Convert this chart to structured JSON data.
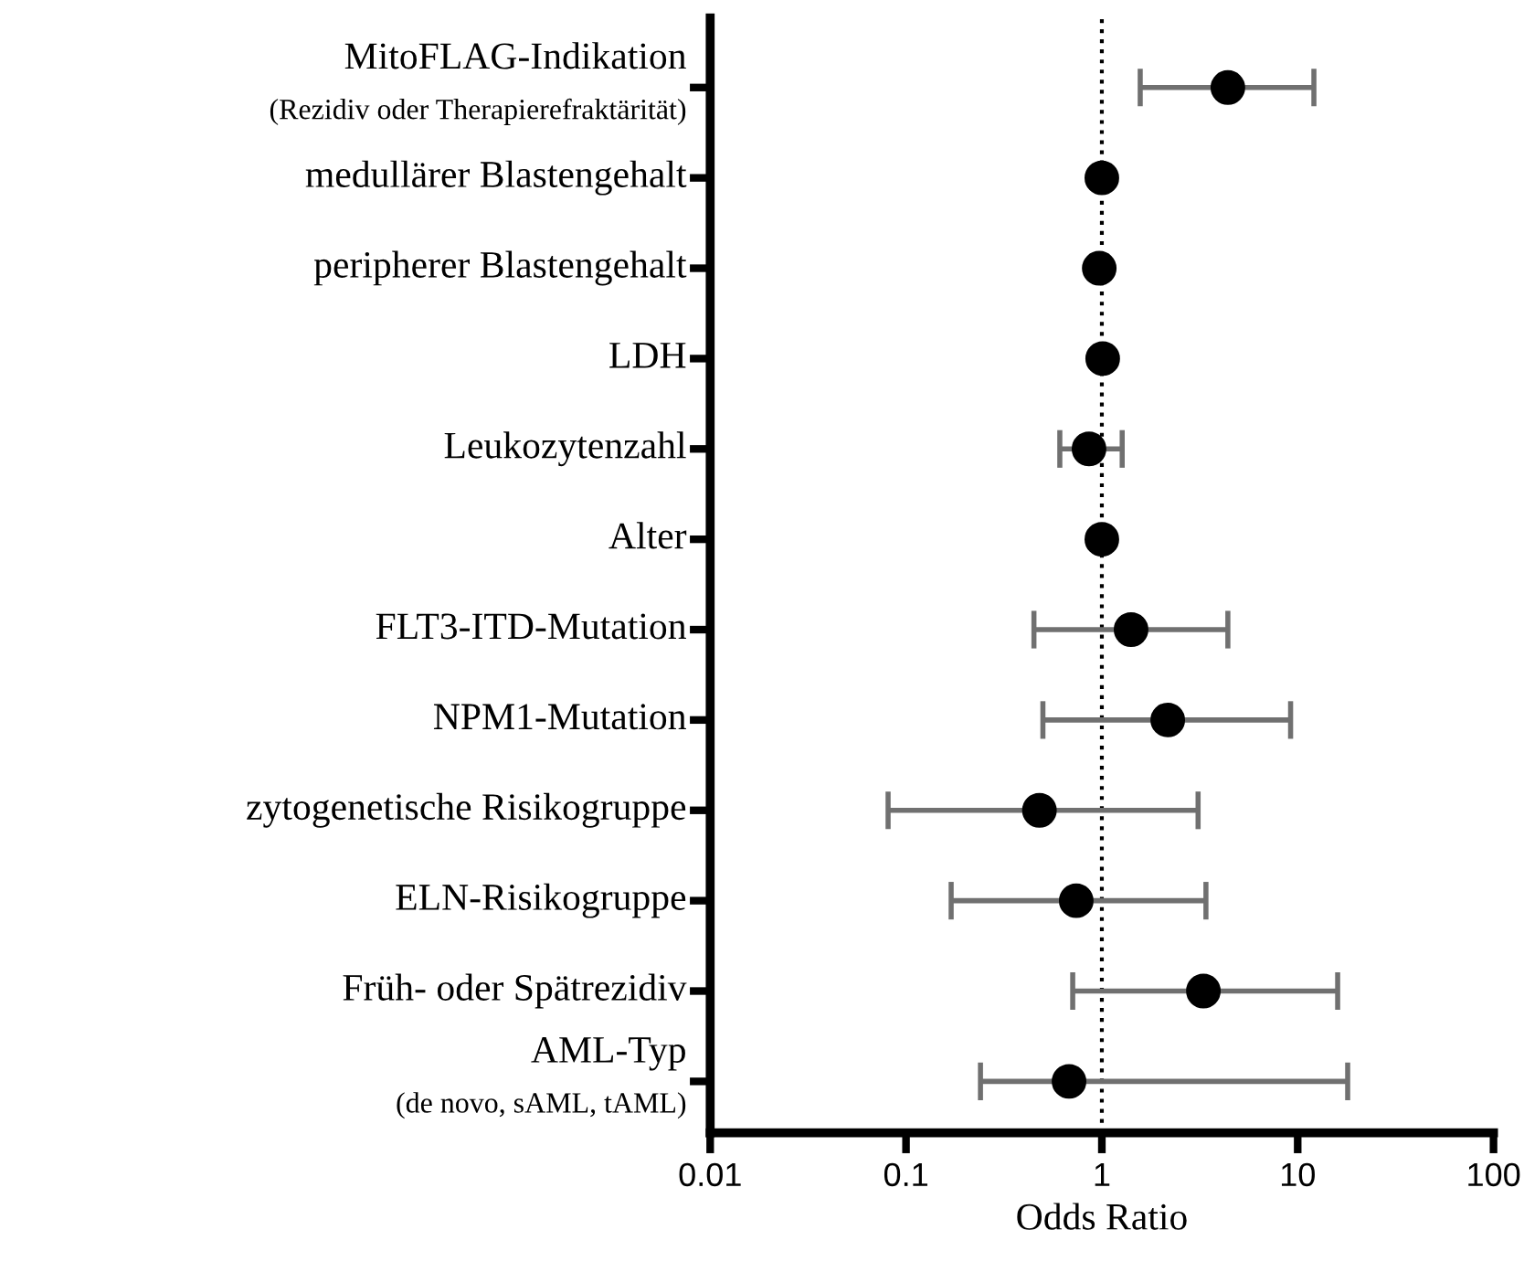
{
  "chart_data": {
    "type": "scatter",
    "orientation": "horizontal",
    "log": "x",
    "xlabel": "Odds Ratio",
    "categories": [
      "MitoFLAG-Indikation\n(Rezidiv oder Therapierefraktärität)",
      "medullärer Blastengehalt",
      "peripherer Blastengehalt",
      "LDH",
      "Leukozytenzahl",
      "Alter",
      "FLT3-ITD-Mutation",
      "NPM1-Mutation",
      "zytogenetische Risikogruppe",
      "ELN-Risikogruppe",
      "Früh- oder Spätrezidiv",
      "AML-Typ\n(de novo, sAML, tAML)"
    ],
    "series": [
      {
        "color": "#000000",
        "values": [
          4.4,
          1.0,
          0.97,
          1.01,
          0.86,
          1.0,
          1.41,
          2.17,
          0.48,
          0.74,
          3.3,
          0.68
        ],
        "errors": [
          [
            1.57,
            12.1
          ],
          null,
          null,
          null,
          [
            0.61,
            1.27
          ],
          null,
          [
            0.45,
            4.4
          ],
          [
            0.5,
            9.2
          ],
          [
            0.081,
            3.1
          ],
          [
            0.17,
            3.4
          ],
          [
            0.71,
            16
          ],
          [
            0.24,
            18
          ]
        ]
      }
    ],
    "xlim": [
      0.01,
      100
    ],
    "xticks": [
      0.01,
      0.1,
      1,
      10,
      100
    ],
    "ref_lines": [
      {
        "axis": "x",
        "value": 1,
        "color": "#000000",
        "line_style": "dotted"
      }
    ],
    "grid": false,
    "legend": false,
    "marker": "circle"
  }
}
